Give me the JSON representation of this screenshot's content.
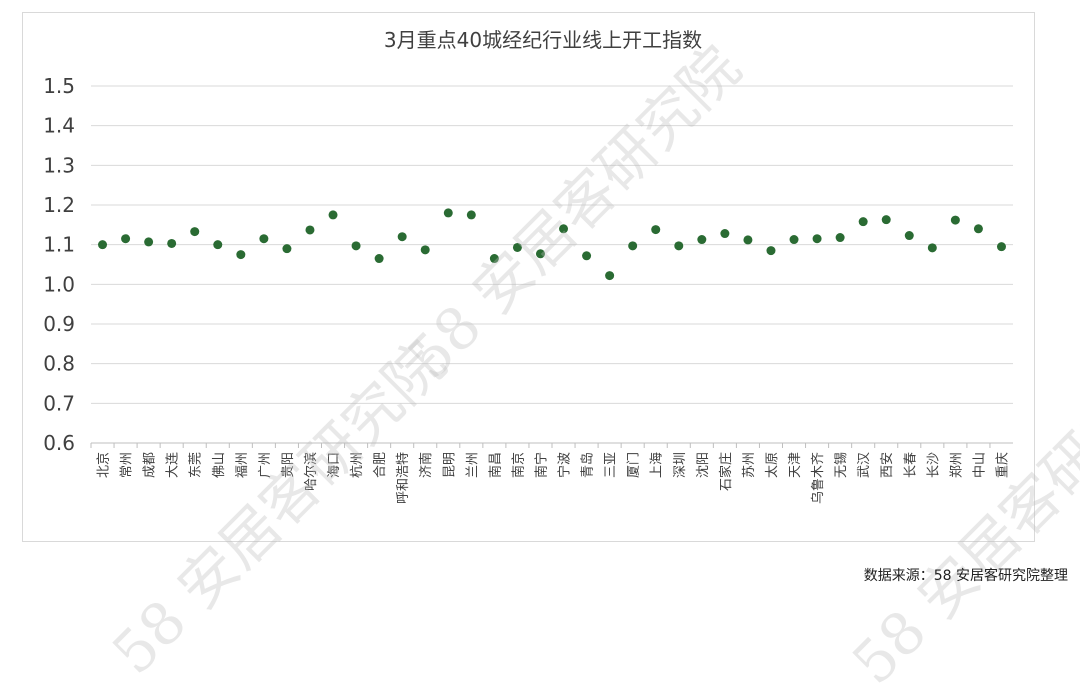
{
  "source_note": "数据来源：58 安居客研究院整理",
  "watermark": "58 安居客研究院",
  "colors": {
    "marker": "#2a6b33",
    "grid": "#d9d9d9",
    "axis": "#bfbfbf",
    "text": "#404040"
  },
  "chart_data": {
    "type": "scatter",
    "title": "3月重点40城经纪行业线上开工指数",
    "xlabel": "",
    "ylabel": "",
    "ylim": [
      0.6,
      1.5
    ],
    "yticks": [
      "1.5",
      "1.4",
      "1.3",
      "1.2",
      "1.1",
      "1.0",
      "0.9",
      "0.8",
      "0.7",
      "0.6"
    ],
    "grid": true,
    "categories": [
      "北京",
      "常州",
      "成都",
      "大连",
      "东莞",
      "佛山",
      "福州",
      "广州",
      "贵阳",
      "哈尔滨",
      "海口",
      "杭州",
      "合肥",
      "呼和浩特",
      "济南",
      "昆明",
      "兰州",
      "南昌",
      "南京",
      "南宁",
      "宁波",
      "青岛",
      "三亚",
      "厦门",
      "上海",
      "深圳",
      "沈阳",
      "石家庄",
      "苏州",
      "太原",
      "天津",
      "乌鲁木齐",
      "无锡",
      "武汉",
      "西安",
      "长春",
      "长沙",
      "郑州",
      "中山",
      "重庆"
    ],
    "values": [
      1.1,
      1.115,
      1.107,
      1.103,
      1.133,
      1.1,
      1.075,
      1.115,
      1.09,
      1.137,
      1.175,
      1.097,
      1.065,
      1.12,
      1.087,
      1.18,
      1.175,
      1.065,
      1.093,
      1.077,
      1.14,
      1.072,
      1.022,
      1.097,
      1.138,
      1.097,
      1.113,
      1.128,
      1.112,
      1.085,
      1.113,
      1.115,
      1.118,
      1.158,
      1.163,
      1.123,
      1.092,
      1.162,
      1.14,
      1.095
    ]
  }
}
